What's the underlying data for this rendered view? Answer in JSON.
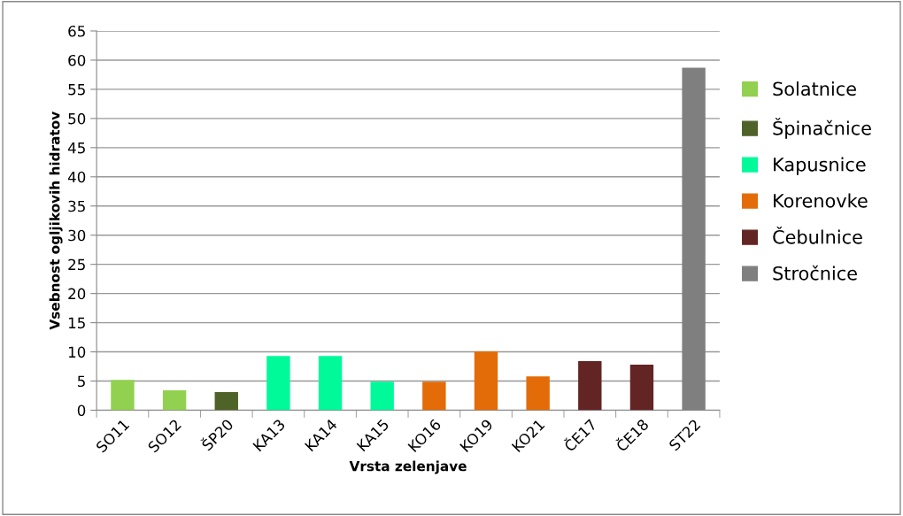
{
  "chart_data": {
    "type": "bar",
    "xlabel": "Vrsta zelenjave",
    "ylabel": "Vsebnost ogljikovih hidratov",
    "categories": [
      "SO11",
      "SO12",
      "ŠP20",
      "KA13",
      "KA14",
      "KA15",
      "KO16",
      "KO19",
      "KO21",
      "ČE17",
      "ČE18",
      "ST22"
    ],
    "series": [
      {
        "name": "Solatnice",
        "color": "#92d050",
        "values": [
          5.2,
          3.4,
          null,
          null,
          null,
          null,
          null,
          null,
          null,
          null,
          null,
          null
        ]
      },
      {
        "name": "Špinačnice",
        "color": "#4f6228",
        "values": [
          null,
          null,
          3.1,
          null,
          null,
          null,
          null,
          null,
          null,
          null,
          null,
          null
        ]
      },
      {
        "name": "Kapusnice",
        "color": "#00fa9a",
        "values": [
          null,
          null,
          null,
          9.3,
          9.3,
          4.9,
          null,
          null,
          null,
          null,
          null,
          null
        ]
      },
      {
        "name": "Korenovke",
        "color": "#e36c09",
        "values": [
          null,
          null,
          null,
          null,
          null,
          null,
          4.9,
          10.1,
          5.8,
          null,
          null,
          null
        ]
      },
      {
        "name": "Čebulnice",
        "color": "#632523",
        "values": [
          null,
          null,
          null,
          null,
          null,
          null,
          null,
          null,
          null,
          8.4,
          7.8,
          null
        ]
      },
      {
        "name": "Stročnice",
        "color": "#7f7f7f",
        "values": [
          null,
          null,
          null,
          null,
          null,
          null,
          null,
          null,
          null,
          null,
          null,
          58.7
        ]
      }
    ],
    "ylim": [
      0,
      65
    ],
    "yticks": [
      0,
      5,
      10,
      15,
      20,
      25,
      30,
      35,
      40,
      45,
      50,
      55,
      60,
      65
    ],
    "grid": "y",
    "legend": "right"
  }
}
